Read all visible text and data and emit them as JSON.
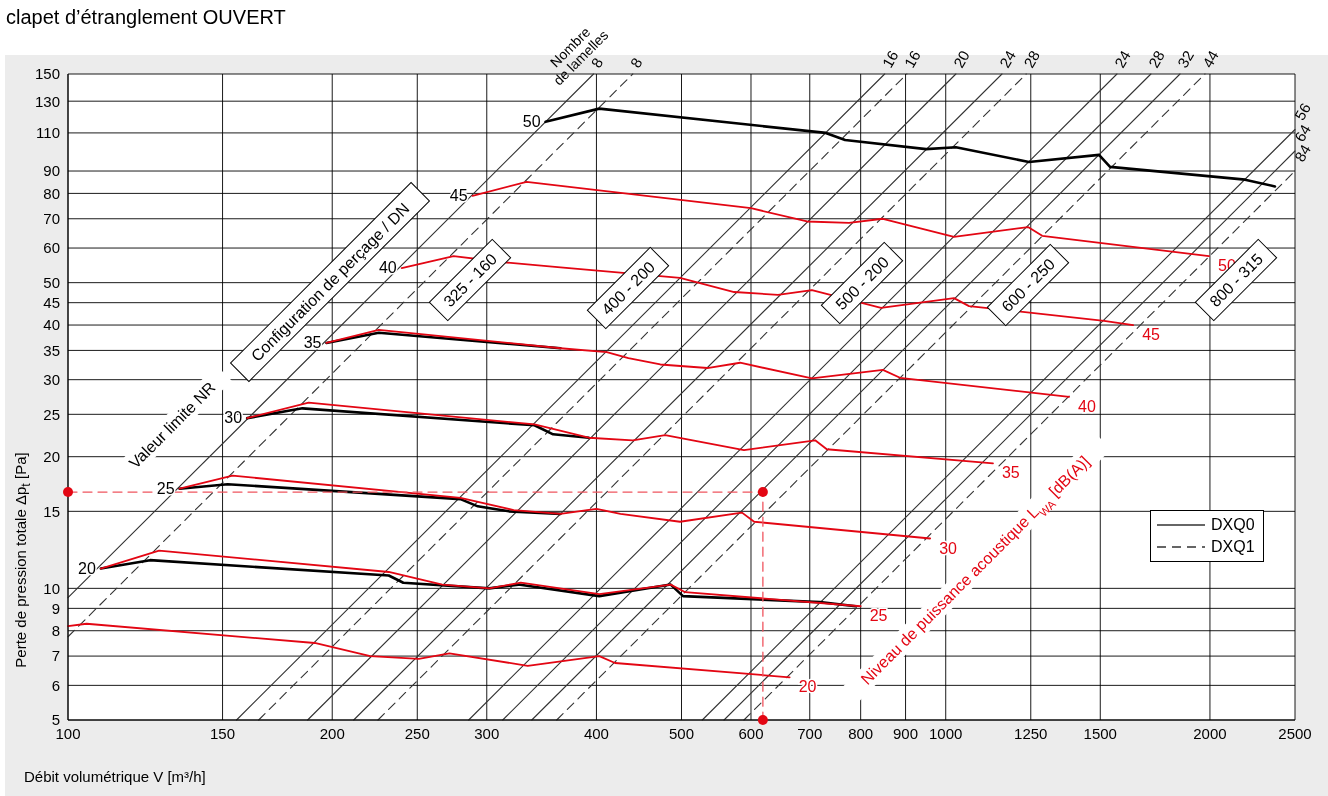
{
  "chart_data": {
    "type": "line",
    "title": "clapet d’étranglement OUVERT",
    "xlabel": "Débit volumétrique V [m³/h]",
    "ylabel": "Perte de pression totale  Δp$_{t}$ [Pa]",
    "log": "xy",
    "grid": true,
    "legend": "right",
    "xlim": [
      100,
      2500
    ],
    "xticks": [
      100,
      150,
      200,
      250,
      300,
      400,
      500,
      600,
      700,
      800,
      900,
      1000,
      1250,
      1500,
      2000,
      2500
    ],
    "ylim": [
      5,
      150
    ],
    "yticks": [
      5,
      6,
      7,
      8,
      9,
      10,
      15,
      20,
      25,
      30,
      35,
      40,
      45,
      50,
      60,
      70,
      80,
      90,
      110,
      130,
      150
    ],
    "series": [
      {
        "name": "DXQ0",
        "color": "#333333",
        "line_style": "solid",
        "x": [
          100,
          397,
          null,
          155.6,
          852,
          null,
          187.5,
          1027,
          null,
          211.6,
          1159,
          null,
          286.1,
          1567,
          null,
          312.8,
          1713,
          null,
          337.6,
          1849,
          null,
          528,
          2500,
          null,
          559,
          2500
        ],
        "values": [
          9.52,
          150,
          null,
          5,
          150,
          null,
          5,
          150,
          null,
          5,
          150,
          null,
          5,
          150,
          null,
          5,
          150,
          null,
          5,
          150,
          null,
          5,
          112,
          null,
          5,
          100
        ]
      },
      {
        "name": "DXQ1",
        "color": "#333333",
        "line_style": "dashed",
        "x": [
          100,
          440,
          null,
          164.9,
          903,
          null,
          225.5,
          1235,
          null,
          360.4,
          1974,
          null,
          589,
          2500
        ],
        "values": [
          7.75,
          150,
          null,
          5,
          150,
          null,
          5,
          150,
          null,
          5,
          150,
          null,
          5,
          90
        ]
      },
      {
        "color": "#000000",
        "x": [
          350,
          403,
          730,
          768,
          950,
          1027,
          1244,
          1495,
          1539,
          2193,
          2372
        ],
        "values": [
          116.6,
          125,
          110,
          106,
          101,
          102,
          94.4,
          98,
          92,
          86,
          83
        ]
      },
      {
        "color": "#000000",
        "x": [
          197,
          226,
          364
        ],
        "values": [
          36.4,
          38.4,
          35.4
        ]
      },
      {
        "color": "#000000",
        "x": [
          160,
          185,
          340,
          357,
          392
        ],
        "values": [
          24.5,
          25.8,
          23.6,
          22.5,
          22.1
        ]
      },
      {
        "color": "#000000",
        "x": [
          134,
          152,
          280,
          293,
          318,
          364
        ],
        "values": [
          16.9,
          17.3,
          16.0,
          15.4,
          15.0,
          14.8
        ]
      },
      {
        "color": "#000000",
        "x": [
          109,
          124,
          232,
          241,
          302,
          326,
          403,
          486,
          502,
          719,
          790
        ],
        "values": [
          11.1,
          11.6,
          10.7,
          10.3,
          10.0,
          10.2,
          9.6,
          10.2,
          9.6,
          9.3,
          9.1
        ]
      },
      {
        "name": "50",
        "color": "#e30613",
        "x": [
          289,
          333,
          600,
          695,
          776,
          848,
          1022,
          1241,
          1288,
          1995
        ],
        "values": [
          79,
          85,
          74,
          69,
          68.5,
          70,
          63.6,
          67,
          64,
          57.5
        ]
      },
      {
        "name": "45",
        "color": "#e30613",
        "x": [
          240,
          275,
          316,
          364,
          498,
          574,
          644,
          704,
          844,
          1022,
          1063,
          1515,
          1635
        ],
        "values": [
          54,
          57.5,
          55.6,
          54.2,
          51.3,
          47.6,
          46.9,
          48.1,
          43.8,
          46.1,
          44.2,
          40.9,
          40
        ]
      },
      {
        "name": "40",
        "color": "#e30613",
        "x": [
          197,
          226,
          364,
          411,
          435,
          473,
          535,
          583,
          704,
          848,
          887,
          1382
        ],
        "values": [
          36.4,
          39,
          35.4,
          34.7,
          33.6,
          32.5,
          31.9,
          32.8,
          30.2,
          31.6,
          30.3,
          27.4
        ]
      },
      {
        "name": "35",
        "color": "#e30613",
        "x": [
          160,
          188,
          340,
          392,
          440,
          479,
          589,
          710,
          732,
          1132
        ],
        "values": [
          24.5,
          26.6,
          23.7,
          22.1,
          21.8,
          22.4,
          20.7,
          21.8,
          20.8,
          19.3
        ]
      },
      {
        "name": "30",
        "color": "#e30613",
        "x": [
          134,
          154,
          280,
          322,
          364,
          400,
          426,
          498,
          586,
          605,
          960
        ],
        "values": [
          16.9,
          18.1,
          16.1,
          15.1,
          14.8,
          15.2,
          14.8,
          14.2,
          14.9,
          14.2,
          13.0
        ]
      },
      {
        "name": "25",
        "color": "#e30613",
        "x": [
          109,
          127,
          232,
          267,
          302,
          328,
          403,
          486,
          505,
          800
        ],
        "values": [
          11.1,
          12.2,
          10.9,
          10.2,
          10.0,
          10.3,
          9.7,
          10.2,
          9.8,
          9.1
        ]
      },
      {
        "name": "20",
        "color": "#e30613",
        "x": [
          100,
          105,
          191,
          221,
          251,
          272,
          334,
          403,
          420,
          664
        ],
        "values": [
          8.2,
          8.3,
          7.5,
          7.0,
          6.9,
          7.1,
          6.65,
          7.0,
          6.75,
          6.26
        ]
      },
      {
        "color": "#f0555f",
        "line_style": "dashed",
        "x": [
          100,
          619,
          619
        ],
        "values": [
          16.6,
          16.6,
          5
        ]
      },
      {
        "type": "scatter",
        "marker": "circle",
        "color": "#e30613",
        "x": [
          100,
          619,
          619
        ],
        "values": [
          16.6,
          16.6,
          5
        ]
      }
    ],
    "annotations": [
      "Nombre de lamelles",
      "Valeur limite NR",
      "Configuration de perçage / DN",
      "325 - 160",
      "400 - 200",
      "500 - 200",
      "600 - 250",
      "800 - 315",
      "Niveau de puissance acoustique L$_{WA}$ [dB(A)]",
      {
        "text": "8",
        "x": 397,
        "y": 150
      },
      {
        "text": "8",
        "x": 440,
        "y": 150
      },
      {
        "text": "16",
        "x": 852,
        "y": 150
      },
      {
        "text": "16",
        "x": 903,
        "y": 150
      },
      {
        "text": "20",
        "x": 1027,
        "y": 150
      },
      {
        "text": "24",
        "x": 1159,
        "y": 150
      },
      {
        "text": "28",
        "x": 1235,
        "y": 150
      },
      {
        "text": "24",
        "x": 1567,
        "y": 150
      },
      {
        "text": "28",
        "x": 1713,
        "y": 150
      },
      {
        "text": "32",
        "x": 1849,
        "y": 150
      },
      {
        "text": "44",
        "x": 1974,
        "y": 150
      },
      {
        "text": "56",
        "x": 2500,
        "y": 112
      },
      {
        "text": "64",
        "x": 2500,
        "y": 100
      },
      {
        "text": "84",
        "x": 2500,
        "y": 90
      },
      {
        "text": "50",
        "x": 350,
        "y": 116.6
      },
      {
        "text": "45",
        "x": 289,
        "y": 79
      },
      {
        "text": "40",
        "x": 240,
        "y": 54
      },
      {
        "text": "35",
        "x": 197,
        "y": 36.4
      },
      {
        "text": "30",
        "x": 160,
        "y": 24.5
      },
      {
        "text": "25",
        "x": 134,
        "y": 16.9
      },
      {
        "text": "20",
        "x": 109,
        "y": 11.1
      }
    ]
  }
}
